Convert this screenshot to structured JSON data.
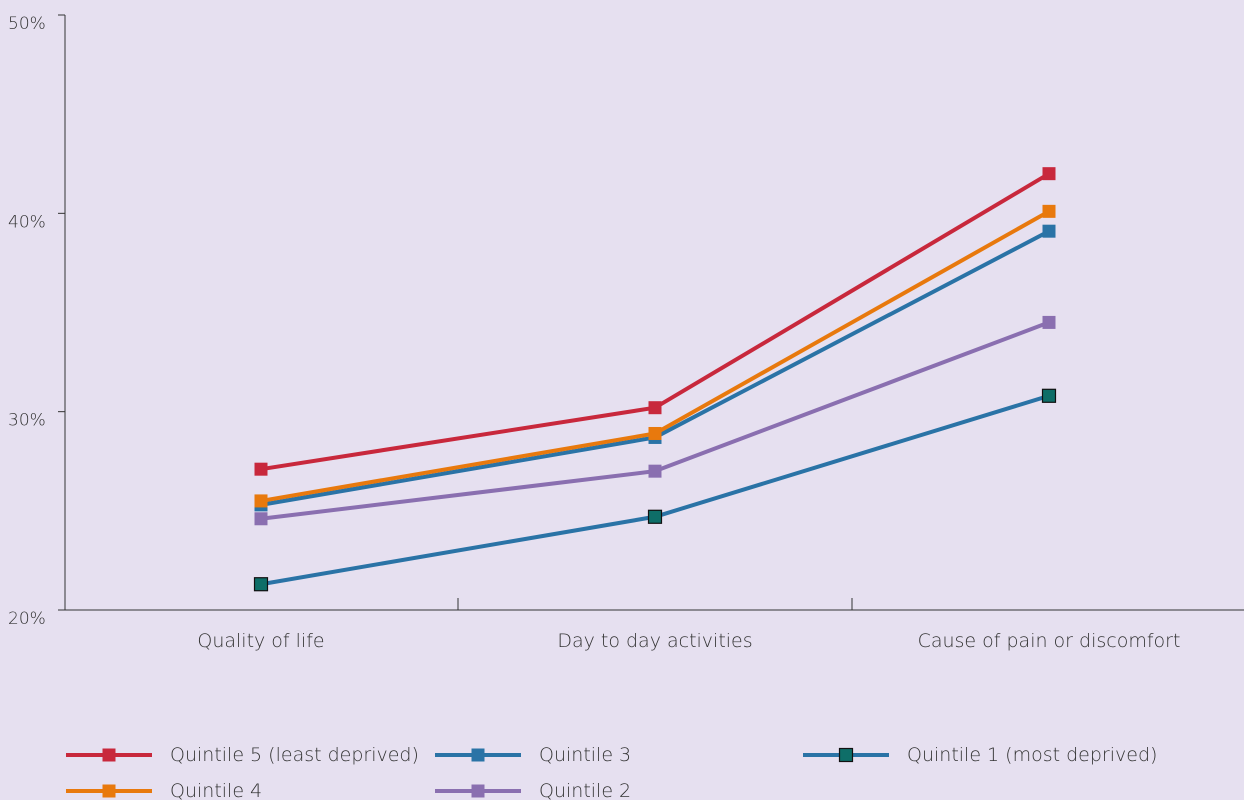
{
  "chart_data": {
    "type": "line",
    "categories": [
      "Quality of life",
      "Day to day activities",
      "Cause of pain or discomfort"
    ],
    "ylim": [
      20,
      50
    ],
    "yticks": [
      20,
      30,
      40,
      50
    ],
    "ytick_labels": [
      "20%",
      "30%",
      "40%",
      "50%"
    ],
    "series": [
      {
        "name": "Quintile 1 (most deprived)",
        "values": [
          21.3,
          24.7,
          30.8
        ],
        "color": "#2a73a6",
        "marker": "#0e6e68"
      },
      {
        "name": "Quintile 2",
        "values": [
          24.6,
          27.0,
          34.5
        ],
        "color": "#8a6fb0",
        "marker": "#8a6fb0"
      },
      {
        "name": "Quintile 3",
        "values": [
          25.3,
          28.7,
          39.1
        ],
        "color": "#2a73a6",
        "marker": "#2a73a6"
      },
      {
        "name": "Quintile 4",
        "values": [
          25.5,
          28.9,
          40.1
        ],
        "color": "#e8790d",
        "marker": "#e8790d"
      },
      {
        "name": "Quintile 5 (least deprived)",
        "values": [
          27.1,
          30.2,
          42.0
        ],
        "color": "#c8283c",
        "marker": "#c8283c"
      }
    ],
    "legend_order": [
      4,
      2,
      0,
      3,
      1
    ],
    "legend_placement": "bottom",
    "grid": false
  }
}
